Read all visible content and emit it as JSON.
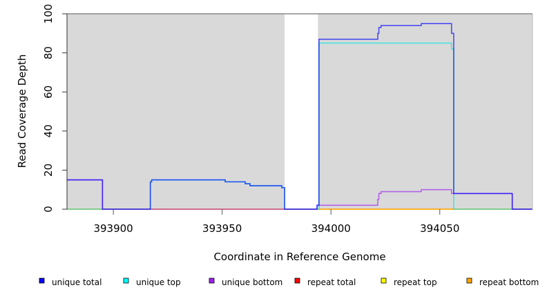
{
  "chart_data": {
    "type": "line",
    "title": "",
    "xlabel": "Coordinate in Reference Genome",
    "ylabel": "Read Coverage Depth",
    "xlim": [
      393878.7,
      394092.6
    ],
    "ylim": [
      0,
      100
    ],
    "x_ticks": [
      393900,
      393950,
      394000,
      394050
    ],
    "x_tick_labels": [
      "393900",
      "393950",
      "394000",
      "394050"
    ],
    "y_ticks": [
      0,
      20,
      40,
      60,
      80,
      100
    ],
    "y_tick_labels": [
      "0",
      "20",
      "40",
      "60",
      "80",
      "100"
    ],
    "shaded_regions": [
      [
        393878.7,
        393978.7
      ],
      [
        393994.0,
        394092.6
      ]
    ],
    "shade_color": "#d9d9d9",
    "legend_placement": "bottom",
    "series": [
      {
        "name": "repeat total",
        "color": "#ff0000",
        "steps": [
          [
            393878.7,
            0
          ],
          [
            394092.6,
            0
          ]
        ]
      },
      {
        "name": "repeat top",
        "color": "#ffff00",
        "steps": [
          [
            393878.7,
            0
          ],
          [
            394092.6,
            0
          ]
        ]
      },
      {
        "name": "repeat bottom",
        "color": "#ffa500",
        "steps": [
          [
            393878.7,
            0
          ],
          [
            394092.6,
            0
          ]
        ]
      },
      {
        "name": "unique top",
        "color": "#00e5e5",
        "steps": [
          [
            393878.7,
            0
          ],
          [
            393917,
            14
          ],
          [
            393917.6,
            15
          ],
          [
            393951.4,
            14
          ],
          [
            393960.6,
            13
          ],
          [
            393962.8,
            12
          ],
          [
            393977.4,
            11
          ],
          [
            393978.7,
            0
          ],
          [
            393994.5,
            85
          ],
          [
            394055.4,
            82
          ],
          [
            394056.4,
            0
          ],
          [
            394092.6,
            0
          ]
        ]
      },
      {
        "name": "unique bottom",
        "color": "#a020f0",
        "steps": [
          [
            393878.7,
            15
          ],
          [
            393895,
            0
          ],
          [
            393993.6,
            2
          ],
          [
            394021.5,
            5
          ],
          [
            394022,
            8
          ],
          [
            394023,
            9
          ],
          [
            394041.5,
            10
          ],
          [
            394055.4,
            8
          ],
          [
            394083.3,
            0
          ],
          [
            394092.6,
            0
          ]
        ]
      },
      {
        "name": "unique total",
        "color": "#0000ff",
        "steps": [
          [
            393878.7,
            15
          ],
          [
            393895,
            0
          ],
          [
            393917,
            14
          ],
          [
            393917.6,
            15
          ],
          [
            393951.4,
            14
          ],
          [
            393960.6,
            13
          ],
          [
            393962.8,
            12
          ],
          [
            393977.4,
            11
          ],
          [
            393978.7,
            0
          ],
          [
            393993.6,
            2
          ],
          [
            393994.5,
            87
          ],
          [
            394021.5,
            90
          ],
          [
            394022,
            93
          ],
          [
            394023,
            94
          ],
          [
            394041.5,
            95
          ],
          [
            394055.4,
            90
          ],
          [
            394056.4,
            8
          ],
          [
            394083.3,
            0
          ],
          [
            394092.6,
            0
          ]
        ]
      }
    ],
    "legend": [
      {
        "name": "unique total",
        "color": "#0000ff"
      },
      {
        "name": "unique top",
        "color": "#00ffff"
      },
      {
        "name": "unique bottom",
        "color": "#a020f0"
      },
      {
        "name": "repeat total",
        "color": "#ff0000"
      },
      {
        "name": "repeat top",
        "color": "#ffff00"
      },
      {
        "name": "repeat bottom",
        "color": "#ffa500"
      }
    ]
  }
}
